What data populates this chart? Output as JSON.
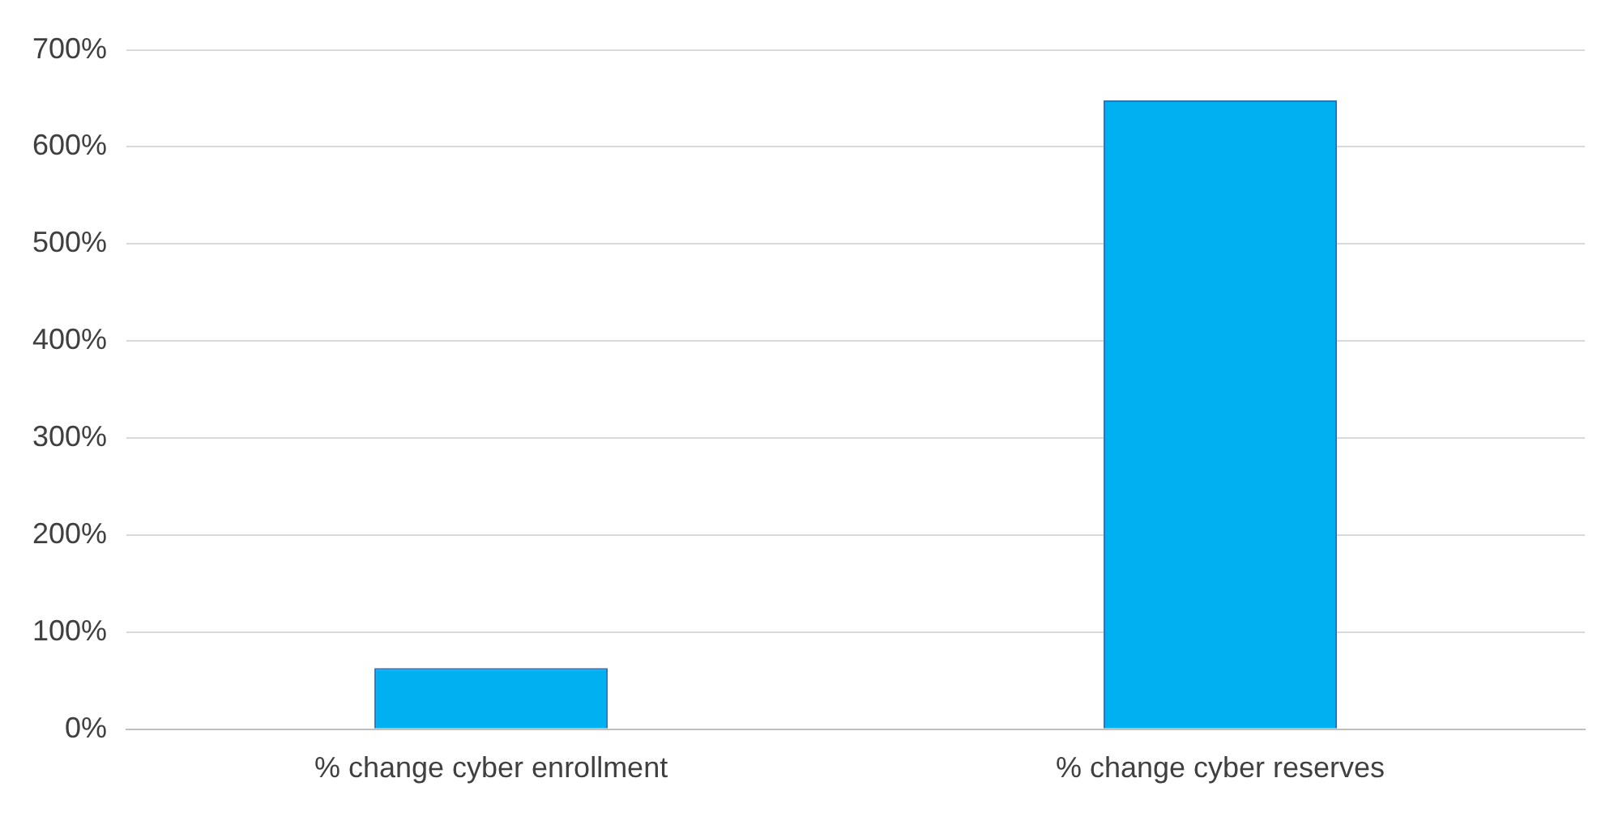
{
  "chart_data": {
    "type": "bar",
    "categories": [
      "% change cyber enrollment",
      "% change cyber reserves"
    ],
    "values": [
      63,
      648
    ],
    "color": "#00b0f0",
    "ylim": [
      0,
      700
    ],
    "yticks": [
      {
        "value": 0,
        "label": "0%"
      },
      {
        "value": 100,
        "label": "100%"
      },
      {
        "value": 200,
        "label": "200%"
      },
      {
        "value": 300,
        "label": "300%"
      },
      {
        "value": 400,
        "label": "400%"
      },
      {
        "value": 500,
        "label": "500%"
      },
      {
        "value": 600,
        "label": "600%"
      },
      {
        "value": 700,
        "label": "700%"
      }
    ],
    "grid": "y",
    "legend": false
  }
}
